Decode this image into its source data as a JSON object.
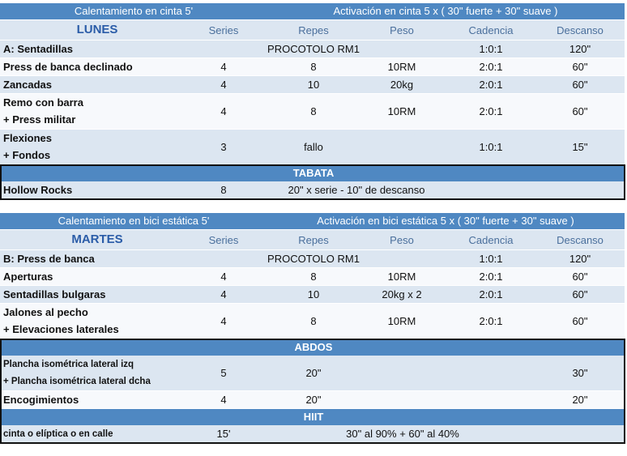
{
  "blocks": [
    {
      "warmup": "Calentamiento en cinta 5'",
      "activation": "Activación en cinta 5 x ( 30\" fuerte + 30\" suave )",
      "day": "LUNES",
      "columns": [
        "Series",
        "Repes",
        "Peso",
        "Cadencia",
        "Descanso"
      ],
      "rows": [
        {
          "name": [
            "A: Sentadillas"
          ],
          "protocol": "PROCOTOLO RM1",
          "cadence": "1:0:1",
          "rest": "120\""
        },
        {
          "name": [
            "Press de banca declinado"
          ],
          "series": "4",
          "reps": "8",
          "weight": "10RM",
          "cadence": "2:0:1",
          "rest": "60\""
        },
        {
          "name": [
            "Zancadas"
          ],
          "series": "4",
          "reps": "10",
          "weight": "20kg",
          "cadence": "2:0:1",
          "rest": "60\""
        },
        {
          "name": [
            "Remo con barra",
            "+ Press militar"
          ],
          "series": "4",
          "reps": "8",
          "weight": "10RM",
          "cadence": "2:0:1",
          "rest": "60\""
        },
        {
          "name": [
            "Flexiones",
            "+ Fondos"
          ],
          "series": "3",
          "reps": "fallo",
          "cadence": "1:0:1",
          "rest": "15\""
        }
      ],
      "sections": [
        {
          "title": "TABATA",
          "rows": [
            {
              "name": [
                "Hollow Rocks"
              ],
              "series": "8",
              "detail": "20\" x serie - 10\" de descanso"
            }
          ]
        }
      ]
    },
    {
      "warmup": "Calentamiento en bici estática 5'",
      "activation": "Activación en bici estática 5 x ( 30\" fuerte + 30\" suave )",
      "day": "MARTES",
      "columns": [
        "Series",
        "Repes",
        "Peso",
        "Cadencia",
        "Descanso"
      ],
      "rows": [
        {
          "name": [
            "B: Press de banca"
          ],
          "protocol": "PROCOTOLO RM1",
          "cadence": "1:0:1",
          "rest": "120\""
        },
        {
          "name": [
            "Aperturas"
          ],
          "series": "4",
          "reps": "8",
          "weight": "10RM",
          "cadence": "2:0:1",
          "rest": "60\""
        },
        {
          "name": [
            "Sentadillas bulgaras"
          ],
          "series": "4",
          "reps": "10",
          "weight": "20kg x 2",
          "cadence": "2:0:1",
          "rest": "60\""
        },
        {
          "name": [
            "Jalones al pecho",
            "+ Elevaciones laterales"
          ],
          "series": "4",
          "reps": "8",
          "weight": "10RM",
          "cadence": "2:0:1",
          "rest": "60\""
        }
      ],
      "sections": [
        {
          "title": "ABDOS",
          "rows": [
            {
              "name": [
                "Plancha isométrica lateral izq",
                "+ Plancha isométrica lateral dcha"
              ],
              "series": "5",
              "reps": "20\"",
              "rest": "30\""
            },
            {
              "name": [
                "Encogimientos"
              ],
              "series": "4",
              "reps": "20\"",
              "rest": "20\""
            }
          ]
        },
        {
          "title": "HIIT",
          "rows": [
            {
              "name": [
                "cinta o elíptica o en calle"
              ],
              "series": "15'",
              "detail": "30\" al 90% + 60\" al 40%"
            }
          ]
        }
      ]
    }
  ]
}
